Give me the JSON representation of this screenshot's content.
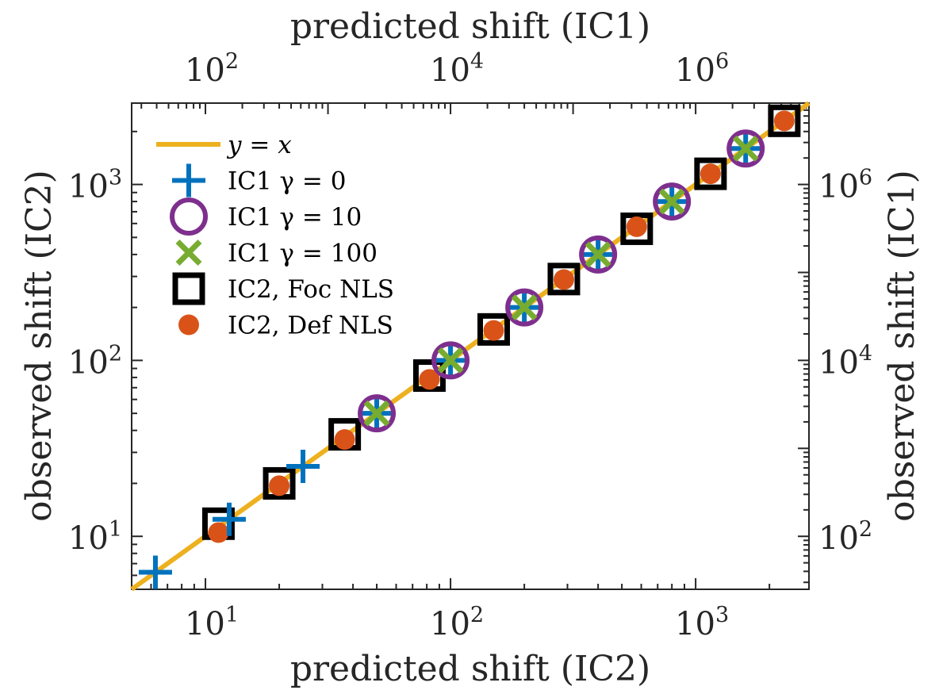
{
  "chart_data": {
    "type": "scatter",
    "xscale": "log",
    "yscale": "log",
    "xlim": [
      5,
      2900
    ],
    "ylim": [
      5,
      2900
    ],
    "xlabel": "predicted shift (IC2)",
    "ylabel": "observed shift (IC2)",
    "x2label": "predicted shift (IC1)",
    "y2label": "observed shift (IC1)",
    "secondary_axis_relation": "IC1 = IC2^2",
    "xticks": [
      {
        "base": "10",
        "exp": "1",
        "value": 10
      },
      {
        "base": "10",
        "exp": "2",
        "value": 100
      },
      {
        "base": "10",
        "exp": "3",
        "value": 1000
      }
    ],
    "yticks": [
      {
        "base": "10",
        "exp": "1",
        "value": 10
      },
      {
        "base": "10",
        "exp": "2",
        "value": 100
      },
      {
        "base": "10",
        "exp": "3",
        "value": 1000
      }
    ],
    "x2ticks": [
      {
        "base": "10",
        "exp": "2",
        "value": 100
      },
      {
        "base": "10",
        "exp": "4",
        "value": 10000
      },
      {
        "base": "10",
        "exp": "6",
        "value": 1000000
      }
    ],
    "y2ticks": [
      {
        "base": "10",
        "exp": "2",
        "value": 100
      },
      {
        "base": "10",
        "exp": "4",
        "value": 10000
      },
      {
        "base": "10",
        "exp": "6",
        "value": 1000000
      }
    ],
    "grid": false,
    "legend_position": "top-left",
    "series": [
      {
        "name": "y = x",
        "kind": "line",
        "color": "#EDB120",
        "x": [
          5,
          2900
        ],
        "y": [
          5,
          2900
        ]
      },
      {
        "name": "IC1 γ = 0",
        "kind": "plus",
        "color": "#0072BD",
        "x": [
          6.25,
          12.5,
          25,
          50,
          100,
          200,
          400,
          800,
          1600
        ],
        "y": [
          6.25,
          12.5,
          25,
          50,
          100,
          200,
          400,
          800,
          1600
        ]
      },
      {
        "name": "IC1 γ = 10",
        "kind": "circle",
        "color": "#7E2F8E",
        "x": [
          50,
          100,
          200,
          400,
          800,
          1600
        ],
        "y": [
          50,
          100,
          200,
          400,
          800,
          1600
        ]
      },
      {
        "name": "IC1 γ = 100",
        "kind": "cross",
        "color": "#77AC30",
        "x": [
          50,
          100,
          200,
          400,
          800,
          1600
        ],
        "y": [
          50,
          100,
          200,
          400,
          800,
          1600
        ]
      },
      {
        "name": "IC2, Foc NLS",
        "kind": "square",
        "color": "#000000",
        "x": [
          11.3,
          20,
          37,
          82,
          150,
          290,
          575,
          1150,
          2300
        ],
        "y": [
          11.8,
          20,
          38,
          82,
          150,
          290,
          560,
          1150,
          2300
        ]
      },
      {
        "name": "IC2, Def NLS",
        "kind": "dot",
        "color": "#D95319",
        "x": [
          11.3,
          20,
          37,
          82,
          150,
          290,
          575,
          1150,
          2300
        ],
        "y": [
          10.5,
          19.4,
          35.5,
          78,
          148,
          288,
          575,
          1150,
          2300
        ]
      }
    ]
  }
}
